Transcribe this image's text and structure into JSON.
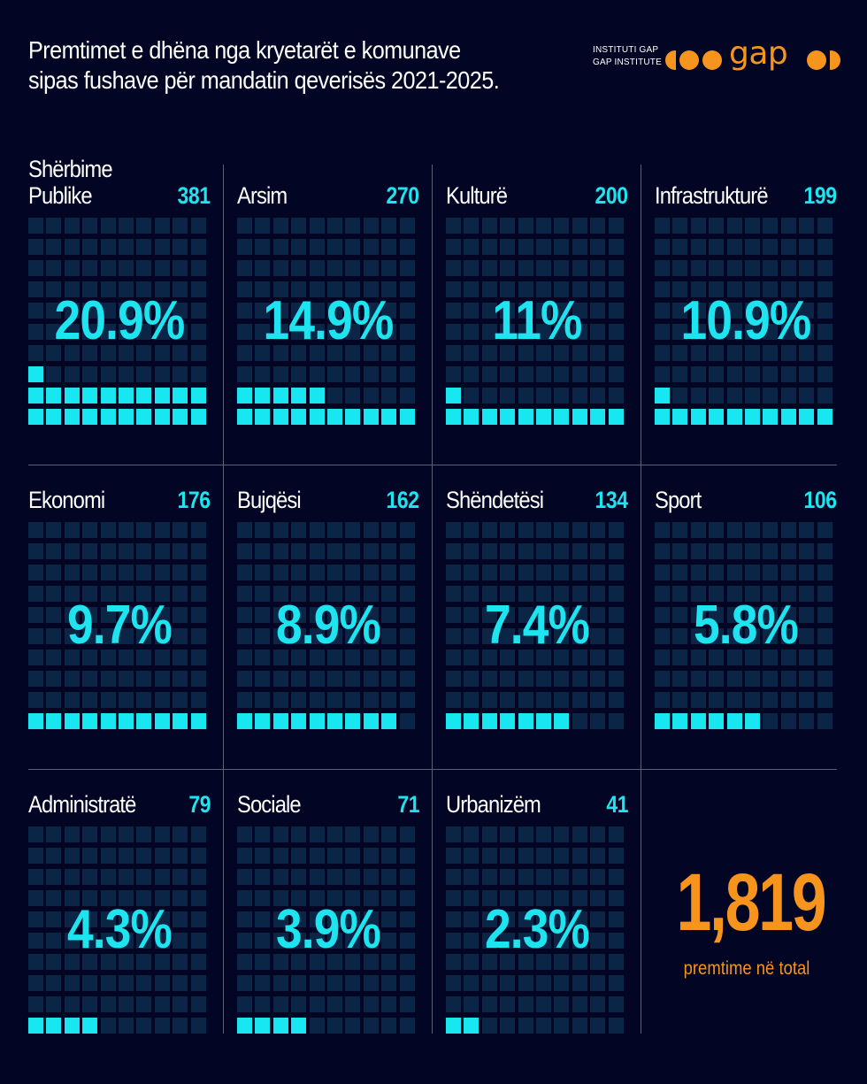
{
  "title_lines": [
    "Premtimet e dhëna nga kryetarët e komunave",
    "sipas fushave për mandatin qeverisës 2021-2025."
  ],
  "brand": {
    "line1": "INSTITUTI GAP",
    "line2": "GAP INSTITUTE",
    "word": "gap",
    "accent": "#f7941d"
  },
  "colors": {
    "background": "#020524",
    "cell_off": "#0b2547",
    "cell_on": "#18e6f0",
    "accent_cyan": "#1de4ef",
    "accent_orange": "#f7941d"
  },
  "chart_data": {
    "type": "waffle",
    "total": 1819,
    "cells_per_panel": 100,
    "categories": [
      {
        "name": "Shërbime\nPublike",
        "count": 381,
        "pct_label": "20.9%",
        "pct": 20.9
      },
      {
        "name": "Arsim",
        "count": 270,
        "pct_label": "14.9%",
        "pct": 14.9
      },
      {
        "name": "Kulturë",
        "count": 200,
        "pct_label": "11%",
        "pct": 11
      },
      {
        "name": "Infrastrukturë",
        "count": 199,
        "pct_label": "10.9%",
        "pct": 10.9
      },
      {
        "name": "Ekonomi",
        "count": 176,
        "pct_label": "9.7%",
        "pct": 9.7
      },
      {
        "name": "Bujqësi",
        "count": 162,
        "pct_label": "8.9%",
        "pct": 8.9
      },
      {
        "name": "Shëndetësi",
        "count": 134,
        "pct_label": "7.4%",
        "pct": 7.4
      },
      {
        "name": "Sport",
        "count": 106,
        "pct_label": "5.8%",
        "pct": 5.8
      },
      {
        "name": "Administratë",
        "count": 79,
        "pct_label": "4.3%",
        "pct": 4.3
      },
      {
        "name": "Sociale",
        "count": 71,
        "pct_label": "3.9%",
        "pct": 3.9
      },
      {
        "name": "Urbanizëm",
        "count": 41,
        "pct_label": "2.3%",
        "pct": 2.3
      }
    ]
  },
  "summary": {
    "total_label": "1,819",
    "caption": "premtime në total"
  }
}
